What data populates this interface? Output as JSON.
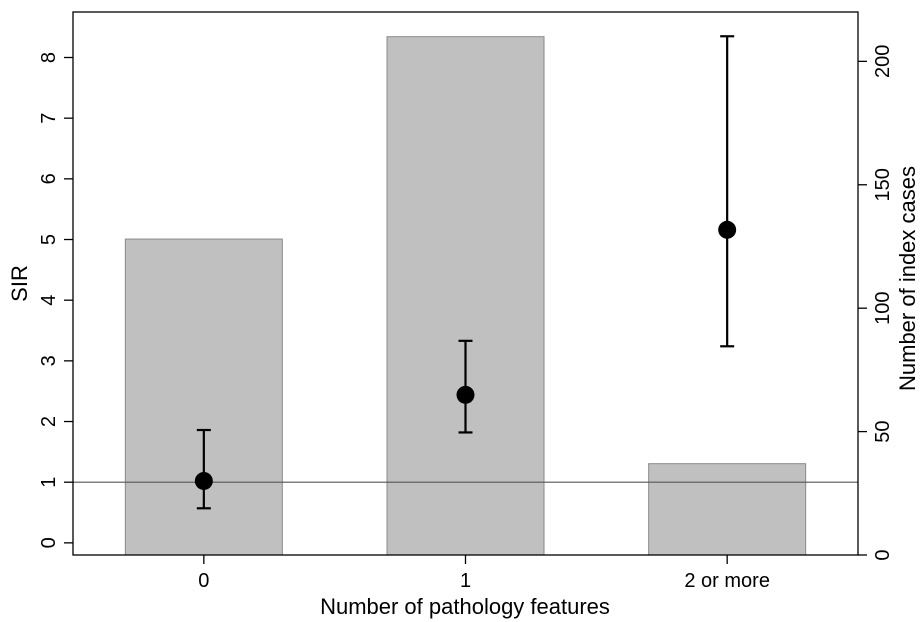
{
  "chart_data": {
    "type": "bar",
    "categories": [
      "0",
      "1",
      "2 or more"
    ],
    "xlabel": "Number of pathology features",
    "ylabel": "SIR",
    "y2label": "Number of index cases",
    "ylim": [
      -0.2,
      8.75
    ],
    "y2lim": [
      0,
      220
    ],
    "yticks": [
      "0",
      "1",
      "2",
      "3",
      "4",
      "5",
      "6",
      "7",
      "8"
    ],
    "y2ticks": [
      "0",
      "50",
      "100",
      "150",
      "200"
    ],
    "series": [
      {
        "type": "bar",
        "axis": "right",
        "values": [
          128,
          210,
          37
        ],
        "color": "#c0c0c0",
        "edge_color": "#8a8a8a"
      },
      {
        "type": "point-errorbar",
        "axis": "left",
        "values": [
          1.02,
          2.44,
          5.16
        ],
        "lower": [
          0.57,
          1.82,
          3.24
        ],
        "upper": [
          1.86,
          3.33,
          8.35
        ],
        "color": "#000000"
      }
    ],
    "reference_line": {
      "y": 1,
      "color": "#555555"
    },
    "grid": false
  }
}
